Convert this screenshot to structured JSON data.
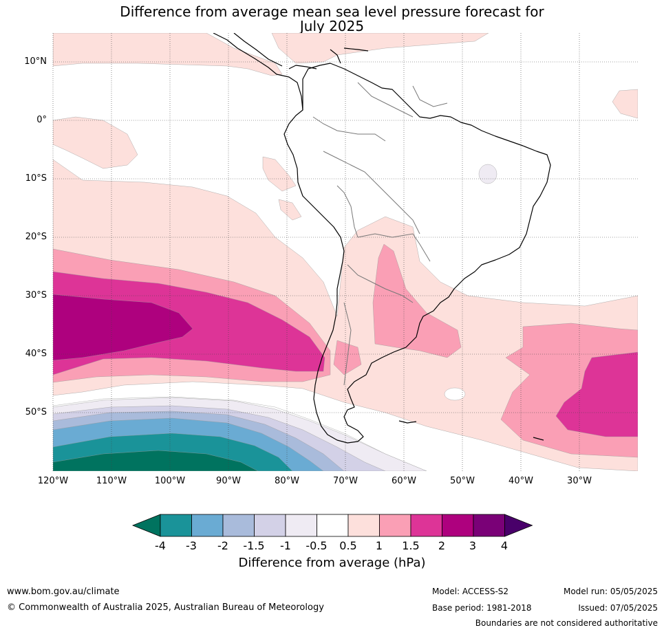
{
  "title": {
    "line1": "Difference from average mean sea level pressure forecast for",
    "line2": "July 2025"
  },
  "lat_labels": [
    "10°N",
    "0°",
    "10°S",
    "20°S",
    "30°S",
    "40°S",
    "50°S"
  ],
  "lon_labels": [
    "120°W",
    "110°W",
    "100°W",
    "90°W",
    "80°W",
    "70°W",
    "60°W",
    "50°W",
    "40°W",
    "30°W"
  ],
  "colorbar": {
    "ticks": [
      "-4",
      "-3",
      "-2",
      "-1.5",
      "-1",
      "-0.5",
      "0.5",
      "1",
      "1.5",
      "2",
      "3",
      "4"
    ],
    "colors": [
      "#1a9399",
      "#6aabd3",
      "#a9bbdb",
      "#d3d1e7",
      "#efebf3",
      "#ffffff",
      "#fde0dc",
      "#fa9fb5",
      "#dd3497",
      "#ae017e",
      "#7a0177"
    ],
    "under_color": "#00735f",
    "over_color": "#49006a",
    "label": "Difference from average (hPa)"
  },
  "footer": {
    "website": "www.bom.gov.au/climate",
    "copyright": "© Commonwealth of Australia 2025, Australian Bureau of Meteorology",
    "model": "Model: ACCESS-S2",
    "base_period": "Base period: 1981-2018",
    "model_run": "Model run: 05/05/2025",
    "issued": "Issued: 07/05/2025",
    "disclaimer": "Boundaries are not considered authoritative"
  }
}
